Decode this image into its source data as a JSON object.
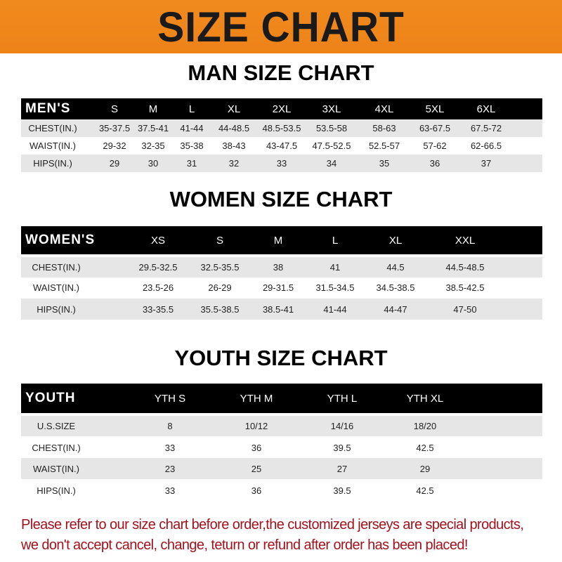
{
  "title": "SIZE CHART",
  "colors": {
    "banner": "#ee8318",
    "header_row": "#000000",
    "stripe": "#e6e6e6",
    "notice": "#a3121c"
  },
  "men": {
    "title": "MAN SIZE CHART",
    "header": [
      "MEN'S",
      "S",
      "M",
      "L",
      "XL",
      "2XL",
      "3XL",
      "4XL",
      "5XL",
      "6XL"
    ],
    "rows": [
      [
        "CHEST(IN.)",
        "35-37.5",
        "37.5-41",
        "41-44",
        "44-48.5",
        "48.5-53.5",
        "53.5-58",
        "58-63",
        "63-67.5",
        "67.5-72"
      ],
      [
        "WAIST(IN.)",
        "29-32",
        "32-35",
        "35-38",
        "38-43",
        "43-47.5",
        "47.5-52.5",
        "52.5-57",
        "57-62",
        "62-66.5"
      ],
      [
        "HIPS(IN.)",
        "29",
        "30",
        "31",
        "32",
        "33",
        "34",
        "35",
        "36",
        "37"
      ]
    ]
  },
  "women": {
    "title": "WOMEN SIZE CHART",
    "header": [
      "WOMEN'S",
      "XS",
      "S",
      "M",
      "L",
      "XL",
      "XXL"
    ],
    "rows": [
      [
        "CHEST(IN.)",
        "29.5-32.5",
        "32.5-35.5",
        "38",
        "41",
        "44.5",
        "44.5-48.5"
      ],
      [
        "WAIST(IN.)",
        "23.5-26",
        "26-29",
        "29-31.5",
        "31.5-34.5",
        "34.5-38.5",
        "38.5-42.5"
      ],
      [
        "HIPS(IN.)",
        "33-35.5",
        "35.5-38.5",
        "38.5-41",
        "41-44",
        "44-47",
        "47-50"
      ]
    ]
  },
  "youth": {
    "title": "YOUTH SIZE CHART",
    "header": [
      "YOUTH",
      "YTH S",
      "YTH M",
      "YTH L",
      "YTH XL"
    ],
    "rows": [
      [
        "U.S.SIZE",
        "8",
        "10/12",
        "14/16",
        "18/20"
      ],
      [
        "CHEST(IN.)",
        "33",
        "36",
        "39.5",
        "42.5"
      ],
      [
        "WAIST(IN.)",
        "23",
        "25",
        "27",
        "29"
      ],
      [
        "HIPS(IN.)",
        "33",
        "36",
        "39.5",
        "42.5"
      ]
    ]
  },
  "notice": {
    "line1": "Please refer to our size chart before order,the customized jerseys are special products,",
    "line2": "we don't accept cancel, change, teturn or refund after order has been placed!"
  }
}
